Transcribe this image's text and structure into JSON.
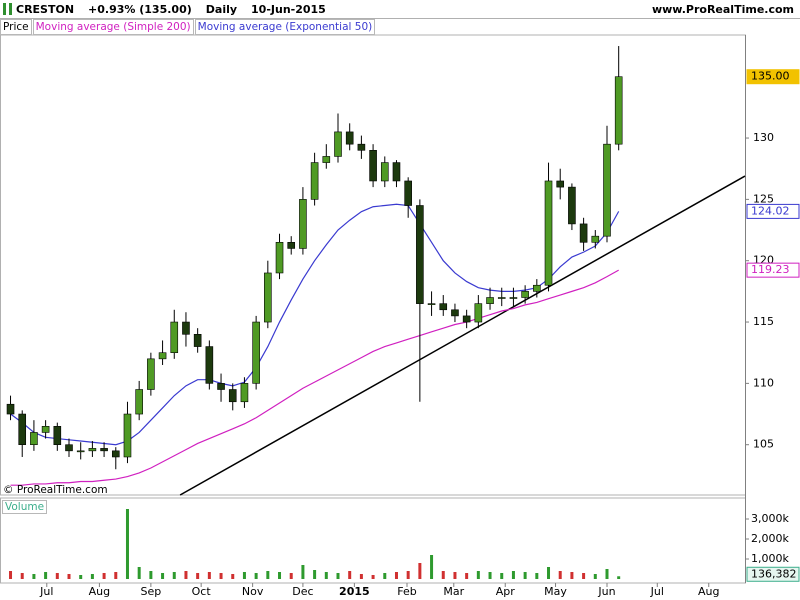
{
  "header": {
    "symbol": "CRESTON",
    "change": "+0.93% (135.00)",
    "interval": "Daily",
    "date": "10-Jun-2015",
    "site": "www.ProRealTime.com"
  },
  "copyright": "© ProRealTime.com",
  "chart_data": [
    {
      "type": "candlestick",
      "name": "Price",
      "up_color": "#4f9a24",
      "down_color": "#1d3a0e",
      "outline_color": "#000000",
      "xlim": [
        -0.9,
        62.8
      ],
      "xticks": [
        {
          "value": 3.1,
          "label": "Jul"
        },
        {
          "value": 7.6,
          "label": "Aug"
        },
        {
          "value": 12,
          "label": "Sep"
        },
        {
          "value": 16.3,
          "label": "Oct"
        },
        {
          "value": 20.7,
          "label": "Nov"
        },
        {
          "value": 25,
          "label": "Dec"
        },
        {
          "value": 29.4,
          "label": "2015",
          "bold": true
        },
        {
          "value": 33.9,
          "label": "Feb"
        },
        {
          "value": 37.9,
          "label": "Mar"
        },
        {
          "value": 42.3,
          "label": "Apr"
        },
        {
          "value": 46.6,
          "label": "May"
        },
        {
          "value": 51,
          "label": "Jun"
        },
        {
          "value": 55.3,
          "label": "Jul"
        },
        {
          "value": 59.7,
          "label": "Aug"
        }
      ],
      "ylim": [
        100.9,
        138.4
      ],
      "yticks": [
        105,
        110,
        115,
        120,
        125,
        130
      ],
      "candles": {
        "open": [
          108.3,
          107.5,
          105,
          106,
          106.5,
          105,
          104.5,
          104.5,
          104.7,
          104.5,
          104,
          107.5,
          109.5,
          112,
          112.5,
          115,
          114,
          113,
          110,
          109.5,
          108.5,
          110,
          115,
          119,
          121.5,
          121,
          125,
          128,
          128.5,
          130.5,
          129.5,
          129,
          126.5,
          128,
          126.5,
          124.5,
          116.5,
          116.5,
          116,
          115.5,
          115,
          116.5,
          117,
          117,
          117,
          117.5,
          118,
          126.5,
          126,
          123,
          121.5,
          122,
          129.5
        ],
        "high": [
          109,
          107.8,
          107,
          107,
          106.8,
          105.5,
          105.2,
          105.3,
          105.2,
          104.8,
          108.5,
          110.2,
          112.5,
          113.5,
          116,
          115.8,
          114.5,
          113.5,
          110.8,
          110,
          110.5,
          115.5,
          120,
          122.2,
          122,
          126,
          128.8,
          129.5,
          132,
          131.2,
          130.2,
          129.5,
          128.5,
          128.2,
          126.8,
          125,
          117.5,
          117.2,
          116.5,
          116,
          117.2,
          117.8,
          117.8,
          117.8,
          118,
          118.5,
          128,
          127.5,
          126.3,
          123.5,
          122.5,
          131,
          137.5
        ],
        "low": [
          107,
          104,
          104.5,
          105.5,
          104.5,
          104,
          103.8,
          104,
          104,
          103,
          103.5,
          107,
          109,
          111.5,
          112,
          113,
          112.5,
          109.5,
          108.5,
          107.8,
          108,
          109.5,
          114.5,
          118.5,
          120.5,
          120.5,
          124.5,
          127.5,
          128,
          129,
          128.3,
          126,
          126,
          126,
          123.5,
          108.5,
          115.5,
          115.5,
          115,
          114.5,
          114.5,
          116,
          116.3,
          116.3,
          116.5,
          117,
          117.5,
          125,
          122.5,
          120.8,
          121,
          121.5,
          129
        ],
        "close": [
          107.5,
          105,
          106,
          106.5,
          105,
          104.5,
          104.5,
          104.7,
          104.5,
          104,
          107.5,
          109.5,
          112,
          112.5,
          115,
          114,
          113,
          110,
          109.5,
          108.5,
          110,
          115,
          119,
          121.5,
          121,
          125,
          128,
          128.5,
          130.5,
          129.5,
          129,
          126.5,
          128,
          126.5,
          124.5,
          116.5,
          116.5,
          116,
          115.5,
          115,
          116.5,
          117,
          117,
          117,
          117.5,
          118,
          126.5,
          126,
          123,
          121.5,
          122,
          129.5,
          135
        ],
        "last_label": "135.00",
        "label_color": "#f2c200"
      },
      "series": [
        {
          "name": "Moving average (Simple 200)",
          "color": "#d020c0",
          "last_label": "119.23",
          "values": [
            101.7,
            101.7,
            101.8,
            101.8,
            101.9,
            101.9,
            102,
            102,
            102.1,
            102.2,
            102.4,
            102.7,
            103.1,
            103.6,
            104.1,
            104.6,
            105.1,
            105.5,
            105.9,
            106.3,
            106.7,
            107.2,
            107.8,
            108.4,
            109,
            109.6,
            110.1,
            110.6,
            111.1,
            111.6,
            112.1,
            112.6,
            113,
            113.3,
            113.6,
            113.9,
            114.2,
            114.5,
            114.8,
            115,
            115.3,
            115.6,
            115.9,
            116.1,
            116.4,
            116.6,
            116.9,
            117.2,
            117.5,
            117.8,
            118.2,
            118.7,
            119.23
          ]
        },
        {
          "name": "Moving average (Exponential 50)",
          "color": "#3a3ad0",
          "last_label": "124.02",
          "values": [
            107.5,
            106.8,
            106,
            105.6,
            105.5,
            105.4,
            105.3,
            105.2,
            105.1,
            105,
            105.3,
            106,
            107,
            108,
            109,
            109.8,
            110.3,
            110.3,
            110,
            109.8,
            110.1,
            111.3,
            113,
            115,
            116.8,
            118.5,
            120,
            121.3,
            122.5,
            123.3,
            124,
            124.4,
            124.5,
            124.6,
            124.5,
            123,
            121.5,
            120,
            119,
            118.3,
            117.8,
            117.6,
            117.5,
            117.5,
            117.6,
            117.8,
            118.5,
            119.5,
            120.3,
            120.7,
            121.2,
            122.3,
            124.02
          ]
        }
      ],
      "trendline": {
        "x": [
          14.5,
          62.8
        ],
        "y": [
          100.9,
          126.9
        ],
        "color": "#000000"
      }
    },
    {
      "type": "bar",
      "title": "Volume",
      "up_color": "#2e9a2e",
      "down_color": "#d03030",
      "ylim": [
        0,
        3950000
      ],
      "yticks": [
        {
          "value": 1000000,
          "label": "1,000k"
        },
        {
          "value": 2000000,
          "label": "2,000k"
        },
        {
          "value": 3000000,
          "label": "3,000k"
        }
      ],
      "values": [
        400000,
        300000,
        250000,
        350000,
        300000,
        250000,
        200000,
        250000,
        300000,
        350000,
        3500000,
        600000,
        400000,
        300000,
        350000,
        400000,
        300000,
        350000,
        300000,
        250000,
        350000,
        300000,
        400000,
        350000,
        300000,
        700000,
        450000,
        350000,
        300000,
        400000,
        250000,
        200000,
        300000,
        350000,
        400000,
        800000,
        1200000,
        400000,
        350000,
        300000,
        400000,
        350000,
        300000,
        400000,
        350000,
        300000,
        600000,
        400000,
        350000,
        300000,
        250000,
        500000,
        136382
      ],
      "last_label": "136,382",
      "label_color": "#3cae8c"
    }
  ]
}
